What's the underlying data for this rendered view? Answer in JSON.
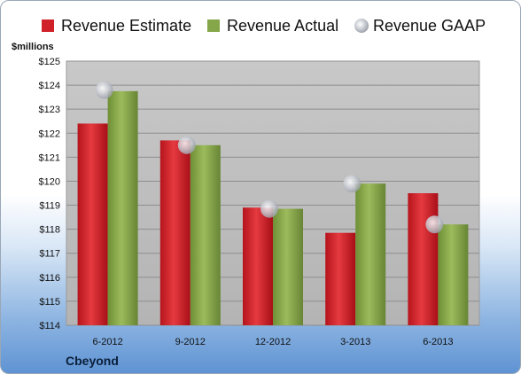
{
  "chart_data": {
    "type": "bar",
    "ylabel": "$millions",
    "ylim": [
      114,
      125
    ],
    "ytick_step": 1,
    "ytick_prefix": "$",
    "categories": [
      "6-2012",
      "9-2012",
      "12-2012",
      "3-2013",
      "6-2013"
    ],
    "series": [
      {
        "name": "Revenue Estimate",
        "kind": "bar",
        "color": "#d0202a",
        "values": [
          122.4,
          121.7,
          118.9,
          117.85,
          119.5
        ]
      },
      {
        "name": "Revenue Actual",
        "kind": "bar",
        "color": "#86a64a",
        "values": [
          123.75,
          121.5,
          118.85,
          119.9,
          118.2
        ]
      },
      {
        "name": "Revenue GAAP",
        "kind": "marker",
        "color": "#c7cbd2",
        "values": [
          123.8,
          121.5,
          118.85,
          119.9,
          118.2
        ]
      }
    ],
    "legend": "top",
    "grid": true,
    "company": "Cbeyond"
  }
}
